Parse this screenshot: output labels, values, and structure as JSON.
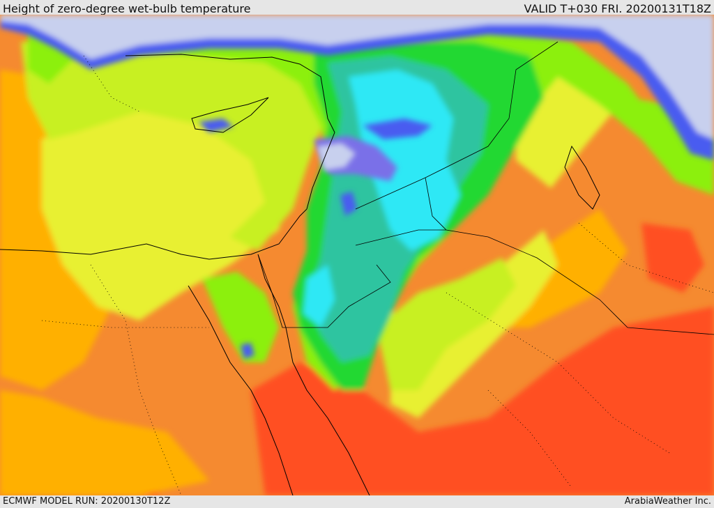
{
  "header": {
    "title": "Height of zero-degree wet-bulb temperature",
    "valid_time": "VALID T+030 FRI. 20200131T18Z"
  },
  "footer": {
    "model_run": "ECMWF MODEL RUN: 20200130T12Z",
    "credit": "ArabiaWeather Inc."
  },
  "palette": {
    "lowest": "#c8d0ee",
    "blue": "#4a5cf0",
    "purple_blue": "#7a6fe8",
    "cyan": "#2ee8f5",
    "teal": "#2fc4a0",
    "green": "#22d832",
    "light_green": "#8cf010",
    "yellow_green": "#c8f020",
    "yellow": "#e8f030",
    "orange_yellow": "#ffb000",
    "orange": "#f58a30",
    "red_orange": "#ff5020"
  }
}
